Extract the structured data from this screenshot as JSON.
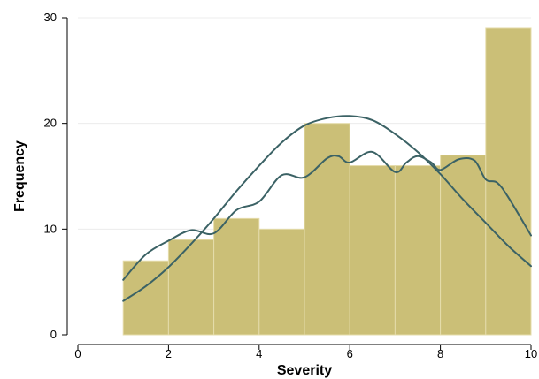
{
  "chart_data": {
    "type": "bar",
    "subtype": "histogram-with-density-curves",
    "title": "",
    "xlabel": "Severity",
    "ylabel": "Frequency",
    "xlim": [
      0,
      10
    ],
    "ylim": [
      0,
      30
    ],
    "x_ticks": [
      0,
      2,
      4,
      6,
      8,
      10
    ],
    "y_ticks": [
      0,
      10,
      20,
      30
    ],
    "grid": "horizontal",
    "bins": [
      {
        "start": 1,
        "end": 2,
        "value": 7
      },
      {
        "start": 2,
        "end": 3,
        "value": 9
      },
      {
        "start": 3,
        "end": 4,
        "value": 11
      },
      {
        "start": 4,
        "end": 5,
        "value": 10
      },
      {
        "start": 5,
        "end": 6,
        "value": 20
      },
      {
        "start": 6,
        "end": 7,
        "value": 16
      },
      {
        "start": 7,
        "end": 8,
        "value": 16
      },
      {
        "start": 8,
        "end": 9,
        "value": 17
      },
      {
        "start": 9,
        "end": 10,
        "value": 29
      }
    ],
    "series": [
      {
        "kind": "smooth-density",
        "x": [
          1.0,
          1.5,
          2.0,
          2.5,
          3.0,
          3.5,
          4.0,
          4.5,
          5.0,
          5.5,
          6.0,
          6.5,
          7.0,
          7.5,
          8.0,
          8.5,
          9.0,
          9.5,
          10.0
        ],
        "y": [
          3.2,
          4.6,
          6.4,
          8.6,
          11.0,
          13.6,
          16.0,
          18.2,
          19.8,
          20.5,
          20.7,
          20.3,
          19.0,
          17.3,
          15.2,
          12.8,
          10.6,
          8.4,
          6.5
        ]
      },
      {
        "kind": "wiggly-density",
        "x": [
          1.0,
          1.5,
          2.0,
          2.5,
          3.0,
          3.5,
          4.0,
          4.5,
          5.0,
          5.5,
          5.75,
          6.0,
          6.5,
          7.0,
          7.25,
          7.5,
          7.8,
          8.0,
          8.4,
          8.75,
          9.0,
          9.25,
          9.5,
          10.0
        ],
        "y": [
          5.2,
          7.6,
          8.9,
          9.9,
          9.6,
          11.8,
          12.6,
          15.1,
          14.9,
          16.7,
          16.9,
          16.3,
          17.3,
          15.4,
          16.3,
          16.9,
          16.3,
          15.6,
          16.6,
          16.5,
          14.7,
          14.4,
          13.0,
          9.4
        ]
      }
    ],
    "colors": {
      "bar_fill": "#cbbf77",
      "bar_stroke": "#e5dcab",
      "curve": "#3b6265",
      "grid": "#ececec"
    }
  }
}
